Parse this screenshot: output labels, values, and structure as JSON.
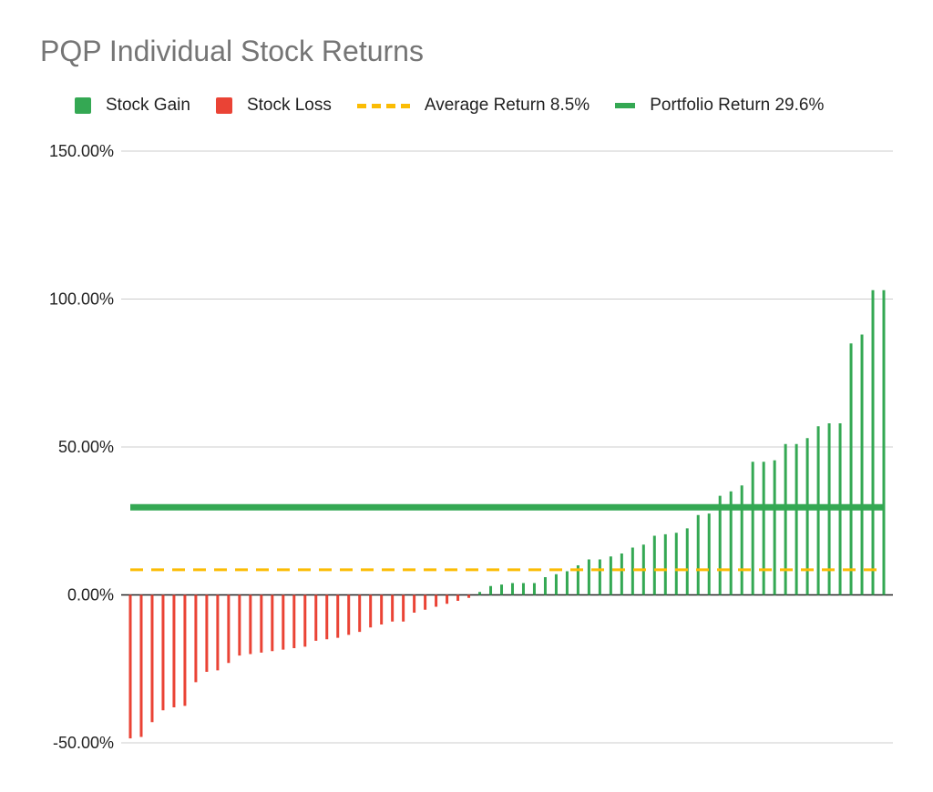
{
  "chart_data": {
    "type": "bar",
    "title": "PQP Individual Stock Returns",
    "xlabel": "",
    "ylabel": "",
    "ylim": [
      -50,
      150
    ],
    "y_ticks": [
      150,
      100,
      50,
      0,
      -50
    ],
    "y_tick_labels": [
      "150.00%",
      "100.00%",
      "50.00%",
      "0.00%",
      "-50.00%"
    ],
    "grid": true,
    "legend_position": "top",
    "colors": {
      "gain": "#34a853",
      "loss": "#ea4335",
      "average": "#fbbc04",
      "portfolio": "#34a853",
      "grid": "#cccccc",
      "axis": "#222222"
    },
    "series": [
      {
        "name": "Stock Gain",
        "values": [
          1.0,
          3.0,
          3.5,
          4.0,
          4.0,
          4.0,
          6.0,
          7.0,
          8.0,
          10.0,
          12.0,
          12.0,
          13.0,
          14.0,
          16.0,
          17.0,
          20.0,
          20.5,
          21.0,
          22.5,
          27.0,
          27.5,
          33.5,
          35.0,
          37.0,
          45.0,
          45.0,
          45.5,
          51.0,
          51.0,
          53.0,
          57.0,
          58.0,
          58.0,
          85.0,
          88.0,
          103.0,
          103.0
        ]
      },
      {
        "name": "Stock Loss",
        "values": [
          -48.5,
          -48.0,
          -43.0,
          -39.0,
          -38.0,
          -37.5,
          -29.5,
          -26.0,
          -25.5,
          -23.0,
          -20.5,
          -20.0,
          -19.5,
          -19.0,
          -18.5,
          -18.0,
          -17.5,
          -15.5,
          -15.0,
          -14.5,
          -13.5,
          -12.5,
          -11.0,
          -10.0,
          -9.0,
          -9.0,
          -6.0,
          -5.0,
          -4.0,
          -3.0,
          -2.0,
          -1.0
        ]
      }
    ],
    "reference_lines": [
      {
        "name": "Average Return 8.5%",
        "value": 8.5,
        "style": "dashed"
      },
      {
        "name": "Portfolio Return 29.6%",
        "value": 29.6,
        "style": "solid"
      }
    ]
  },
  "legend": {
    "gain_label": "Stock Gain",
    "loss_label": "Stock Loss",
    "average_label": "Average Return 8.5%",
    "portfolio_label": "Portfolio Return 29.6%"
  }
}
